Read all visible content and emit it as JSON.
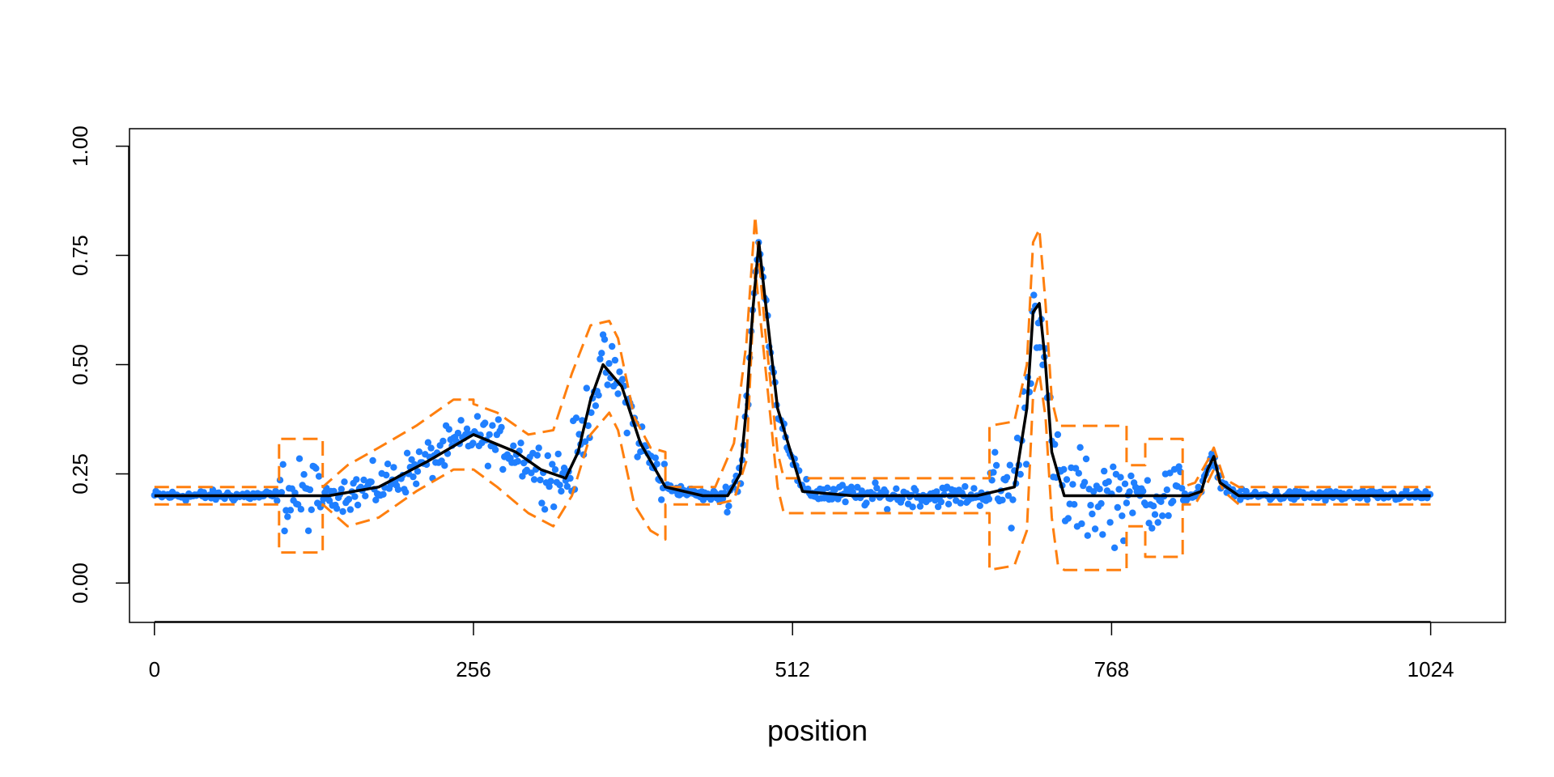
{
  "chart_data": {
    "type": "scatter",
    "title": "",
    "xlabel": "position",
    "ylabel": "",
    "xlim": [
      -20,
      1084
    ],
    "ylim": [
      -0.09,
      1.04
    ],
    "x_ticks": [
      0,
      256,
      512,
      768,
      1024
    ],
    "x_tick_labels": [
      "0",
      "256",
      "512",
      "768",
      "1024"
    ],
    "y_ticks": [
      0,
      0.25,
      0.5,
      0.75,
      1
    ],
    "y_tick_labels": [
      "0.00",
      "0.25",
      "0.50",
      "0.75",
      "1.00"
    ],
    "grid": false,
    "legend": "none",
    "colors": {
      "mean_line": "#000000",
      "band": "#ff7f0e",
      "points": "#1f7fff"
    },
    "series": [
      {
        "role": "mean",
        "style": "solid-line",
        "x": [
          0,
          100,
          140,
          180,
          220,
          256,
          290,
          310,
          330,
          340,
          350,
          360,
          375,
          390,
          410,
          440,
          460,
          470,
          475,
          480,
          485,
          490,
          500,
          520,
          560,
          600,
          660,
          690,
          700,
          705,
          710,
          715,
          720,
          730,
          760,
          800,
          830,
          840,
          845,
          850,
          855,
          870,
          900,
          1024
        ],
        "y": [
          0.2,
          0.2,
          0.2,
          0.22,
          0.28,
          0.34,
          0.3,
          0.26,
          0.24,
          0.3,
          0.42,
          0.5,
          0.45,
          0.32,
          0.22,
          0.2,
          0.2,
          0.25,
          0.4,
          0.62,
          0.78,
          0.65,
          0.4,
          0.21,
          0.2,
          0.2,
          0.2,
          0.22,
          0.4,
          0.62,
          0.64,
          0.5,
          0.3,
          0.2,
          0.2,
          0.2,
          0.2,
          0.21,
          0.26,
          0.29,
          0.23,
          0.2,
          0.2,
          0.2
        ]
      },
      {
        "role": "upper band",
        "style": "dashed-line",
        "x": [
          0,
          100,
          100,
          135,
          135,
          155,
          180,
          210,
          240,
          256,
          256,
          275,
          300,
          320,
          335,
          350,
          365,
          372,
          385,
          398,
          410,
          410,
          450,
          465,
          475,
          482,
          490,
          500,
          505,
          510,
          550,
          600,
          670,
          670,
          690,
          700,
          705,
          710,
          715,
          720,
          725,
          730,
          780,
          780,
          795,
          795,
          825,
          825,
          835,
          845,
          850,
          858,
          870,
          1024
        ],
        "y": [
          0.22,
          0.22,
          0.33,
          0.33,
          0.22,
          0.27,
          0.31,
          0.36,
          0.42,
          0.42,
          0.41,
          0.39,
          0.34,
          0.35,
          0.48,
          0.59,
          0.6,
          0.56,
          0.38,
          0.31,
          0.3,
          0.22,
          0.22,
          0.32,
          0.55,
          0.84,
          0.58,
          0.3,
          0.24,
          0.24,
          0.24,
          0.24,
          0.24,
          0.36,
          0.37,
          0.5,
          0.78,
          0.81,
          0.64,
          0.42,
          0.36,
          0.36,
          0.36,
          0.27,
          0.27,
          0.33,
          0.33,
          0.22,
          0.23,
          0.28,
          0.31,
          0.24,
          0.22,
          0.22
        ]
      },
      {
        "role": "lower band",
        "style": "dashed-line",
        "x": [
          0,
          100,
          100,
          135,
          135,
          155,
          180,
          210,
          240,
          256,
          256,
          275,
          300,
          320,
          335,
          350,
          365,
          372,
          385,
          398,
          410,
          410,
          450,
          465,
          475,
          482,
          490,
          500,
          505,
          510,
          550,
          600,
          670,
          670,
          690,
          700,
          705,
          710,
          715,
          720,
          725,
          730,
          780,
          780,
          795,
          795,
          825,
          825,
          835,
          845,
          850,
          858,
          870,
          1024
        ],
        "y": [
          0.18,
          0.18,
          0.07,
          0.07,
          0.18,
          0.13,
          0.15,
          0.21,
          0.26,
          0.26,
          0.26,
          0.22,
          0.16,
          0.13,
          0.2,
          0.34,
          0.39,
          0.35,
          0.18,
          0.12,
          0.1,
          0.18,
          0.18,
          0.19,
          0.28,
          0.72,
          0.5,
          0.22,
          0.16,
          0.16,
          0.16,
          0.16,
          0.16,
          0.03,
          0.04,
          0.12,
          0.43,
          0.48,
          0.38,
          0.15,
          0.04,
          0.03,
          0.03,
          0.13,
          0.13,
          0.06,
          0.06,
          0.18,
          0.18,
          0.23,
          0.26,
          0.21,
          0.18,
          0.18
        ]
      }
    ],
    "points_description_series": "noisy observations"
  }
}
